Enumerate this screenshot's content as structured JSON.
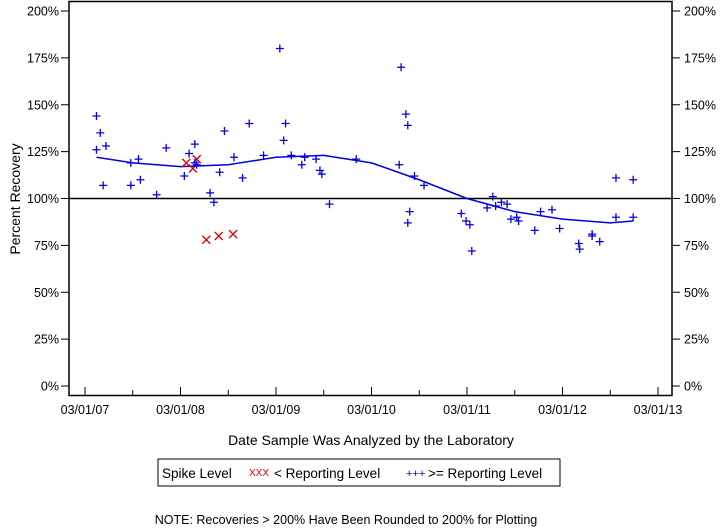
{
  "chart_data": {
    "type": "scatter",
    "title": "",
    "xlabel": "Date Sample Was Analyzed by the Laboratory",
    "ylabel": "Percent Recovery",
    "x_tick_labels": [
      "03/01/07",
      "03/01/08",
      "03/01/09",
      "03/01/10",
      "03/01/11",
      "03/01/12",
      "03/01/13"
    ],
    "y_tick_labels": [
      "0%",
      "25%",
      "50%",
      "75%",
      "100%",
      "125%",
      "150%",
      "175%",
      "200%"
    ],
    "y_ticks": [
      0,
      25,
      50,
      75,
      100,
      125,
      150,
      175,
      200
    ],
    "xlim_years_since_03_01_07": [
      -0.17,
      6.15
    ],
    "ylim": [
      -5,
      205
    ],
    "reference_line": 100,
    "legend": {
      "title": "Spike Level",
      "entries": [
        {
          "marker": "XXX",
          "label": "< Reporting Level",
          "color": "#e00000"
        },
        {
          "marker": "+++",
          "label": ">= Reporting Level",
          "color": "#0000e0"
        }
      ]
    },
    "note": "NOTE: Recoveries > 200% Have Been Rounded to 200% for Plotting",
    "series": [
      {
        "name": "< Reporting Level",
        "marker": "x",
        "color": "#e00000",
        "x_years": [
          1.06,
          1.17,
          1.13,
          1.27,
          1.4,
          1.55
        ],
        "y": [
          119,
          121,
          116,
          78,
          80,
          81
        ]
      },
      {
        "name": ">= Reporting Level",
        "marker": "+",
        "color": "#0000e0",
        "x_years": [
          0.12,
          0.16,
          0.12,
          0.22,
          0.19,
          0.48,
          0.48,
          0.56,
          0.58,
          0.75,
          0.85,
          1.09,
          1.15,
          1.04,
          1.15,
          1.17,
          1.31,
          1.35,
          1.41,
          1.46,
          1.56,
          1.65,
          1.72,
          2.04,
          2.1,
          2.08,
          1.87,
          2.16,
          2.27,
          2.3,
          2.42,
          2.48,
          2.46,
          2.56,
          2.84,
          3.31,
          3.36,
          3.38,
          3.29,
          3.45,
          3.55,
          3.4,
          3.38,
          3.94,
          3.99,
          4.03,
          4.05,
          4.27,
          4.36,
          4.42,
          4.21,
          4.3,
          4.46,
          4.52,
          4.54,
          4.71,
          4.77,
          4.89,
          4.97,
          5.17,
          5.18,
          5.31,
          5.31,
          5.39,
          5.56,
          5.74,
          5.56,
          5.74
        ],
        "y": [
          144,
          135,
          126,
          128,
          107,
          107,
          119,
          121,
          110,
          102,
          127,
          124,
          129,
          112,
          119,
          118,
          103,
          98,
          114,
          136,
          122,
          111,
          140,
          180,
          140,
          131,
          123,
          123,
          118,
          122,
          121,
          113,
          115,
          97,
          121,
          170,
          145,
          139,
          118,
          112,
          107,
          93,
          87,
          92,
          88,
          86,
          72,
          101,
          98,
          97,
          95,
          96,
          89,
          90,
          88,
          83,
          93,
          94,
          84,
          76,
          73,
          81,
          80,
          77,
          111,
          110,
          90,
          90
        ]
      }
    ],
    "trend_curve": {
      "color": "#0000e0",
      "x_years": [
        0.12,
        0.5,
        1.0,
        1.5,
        2.0,
        2.5,
        3.0,
        3.5,
        4.0,
        4.5,
        5.0,
        5.5,
        5.74
      ],
      "y": [
        122,
        119,
        117,
        118,
        122,
        123,
        119,
        110,
        100,
        93,
        89,
        87,
        88
      ]
    }
  }
}
